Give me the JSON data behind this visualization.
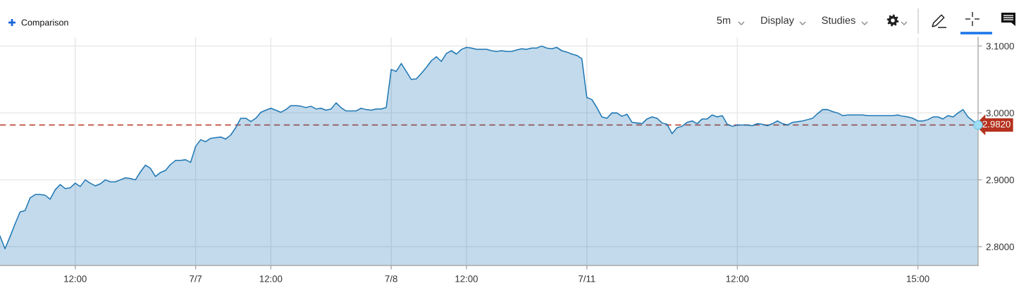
{
  "chart_data": {
    "type": "area",
    "categories": [
      null,
      null,
      null,
      null,
      null,
      null,
      null,
      null,
      null,
      null,
      null,
      null,
      null,
      null,
      null,
      "12:00",
      null,
      null,
      null,
      null,
      null,
      null,
      null,
      null,
      null,
      null,
      null,
      null,
      null,
      null,
      null,
      null,
      null,
      null,
      null,
      null,
      null,
      null,
      null,
      "7/7",
      null,
      null,
      null,
      null,
      null,
      null,
      null,
      null,
      null,
      null,
      null,
      null,
      null,
      null,
      "12:00",
      null,
      null,
      null,
      null,
      null,
      null,
      null,
      null,
      null,
      null,
      null,
      null,
      null,
      null,
      null,
      null,
      null,
      null,
      null,
      null,
      null,
      null,
      null,
      "7/8",
      null,
      null,
      null,
      null,
      null,
      null,
      null,
      null,
      null,
      null,
      null,
      null,
      null,
      null,
      "12:00",
      null,
      null,
      null,
      null,
      null,
      null,
      null,
      null,
      null,
      null,
      null,
      null,
      null,
      null,
      null,
      null,
      null,
      null,
      null,
      null,
      null,
      null,
      null,
      "7/11",
      null,
      null,
      null,
      null,
      null,
      null,
      null,
      null,
      null,
      null,
      null,
      null,
      null,
      null,
      null,
      null,
      null,
      null,
      null,
      null,
      null,
      null,
      null,
      null,
      null,
      null,
      null,
      null,
      null,
      "12:00",
      null,
      null,
      null,
      null,
      null,
      null,
      null,
      null,
      null,
      null,
      null,
      null,
      null,
      null,
      null,
      null,
      null,
      null,
      null,
      null,
      null,
      null,
      null,
      null,
      null,
      null,
      null,
      null,
      null,
      null,
      null,
      null,
      null,
      null,
      null,
      "15:00",
      null,
      null,
      null,
      null,
      null,
      null,
      null,
      null,
      null,
      null,
      null,
      null
    ],
    "series": [
      {
        "color": "#1f77b4",
        "values": [
          2.816,
          2.797,
          2.815,
          2.834,
          2.852,
          2.854,
          2.873,
          2.878,
          2.878,
          2.877,
          2.871,
          2.885,
          2.893,
          2.887,
          2.888,
          2.895,
          2.89,
          2.9,
          2.895,
          2.891,
          2.894,
          2.9,
          2.897,
          2.897,
          2.9,
          2.903,
          2.902,
          2.9,
          2.912,
          2.922,
          2.917,
          2.905,
          2.911,
          2.914,
          2.923,
          2.929,
          2.929,
          2.93,
          2.926,
          2.95,
          2.96,
          2.957,
          2.962,
          2.963,
          2.964,
          2.961,
          2.967,
          2.978,
          2.992,
          2.992,
          2.987,
          2.992,
          3.001,
          3.004,
          3.007,
          3.004,
          3.001,
          3.005,
          3.011,
          3.011,
          3.01,
          3.008,
          3.01,
          3.006,
          3.007,
          3.004,
          3.006,
          3.015,
          3.008,
          3.003,
          3.003,
          3.003,
          3.007,
          3.005,
          3.004,
          3.006,
          3.006,
          3.008,
          3.065,
          3.062,
          3.074,
          3.062,
          3.05,
          3.051,
          3.059,
          3.068,
          3.078,
          3.084,
          3.077,
          3.089,
          3.093,
          3.088,
          3.095,
          3.098,
          3.097,
          3.095,
          3.095,
          3.095,
          3.093,
          3.092,
          3.093,
          3.092,
          3.092,
          3.094,
          3.096,
          3.095,
          3.097,
          3.097,
          3.1,
          3.097,
          3.096,
          3.098,
          3.093,
          3.091,
          3.088,
          3.086,
          3.081,
          3.023,
          3.02,
          3.008,
          2.994,
          2.992,
          3.0,
          3.0,
          2.995,
          2.998,
          2.986,
          2.985,
          2.984,
          2.991,
          2.994,
          2.992,
          2.985,
          2.983,
          2.969,
          2.978,
          2.98,
          2.986,
          2.988,
          2.984,
          2.991,
          2.991,
          2.997,
          2.994,
          2.996,
          2.983,
          2.98,
          2.982,
          2.982,
          2.982,
          2.981,
          2.984,
          2.983,
          2.981,
          2.984,
          2.988,
          2.984,
          2.982,
          2.986,
          2.987,
          2.988,
          2.99,
          2.992,
          2.999,
          3.005,
          3.005,
          3.002,
          3.0,
          2.996,
          2.997,
          2.997,
          2.997,
          2.997,
          2.996,
          2.996,
          2.996,
          2.996,
          2.996,
          2.996,
          2.997,
          2.995,
          2.994,
          2.992,
          2.988,
          2.988,
          2.99,
          2.994,
          2.994,
          2.991,
          2.996,
          2.994,
          3.0,
          3.005,
          2.994,
          2.988,
          2.982
        ]
      },
      {
        "type": "scatter",
        "color": "#9fdcf5",
        "marker": "circle",
        "values": [
          null,
          null,
          null,
          null,
          null,
          null,
          null,
          null,
          null,
          null,
          null,
          null,
          null,
          null,
          null,
          null,
          null,
          null,
          null,
          null,
          null,
          null,
          null,
          null,
          null,
          null,
          null,
          null,
          null,
          null,
          null,
          null,
          null,
          null,
          null,
          null,
          null,
          null,
          null,
          null,
          null,
          null,
          null,
          null,
          null,
          null,
          null,
          null,
          null,
          null,
          null,
          null,
          null,
          null,
          null,
          null,
          null,
          null,
          null,
          null,
          null,
          null,
          null,
          null,
          null,
          null,
          null,
          null,
          null,
          null,
          null,
          null,
          null,
          null,
          null,
          null,
          null,
          null,
          null,
          null,
          null,
          null,
          null,
          null,
          null,
          null,
          null,
          null,
          null,
          null,
          null,
          null,
          null,
          null,
          null,
          null,
          null,
          null,
          null,
          null,
          null,
          null,
          null,
          null,
          null,
          null,
          null,
          null,
          null,
          null,
          null,
          null,
          null,
          null,
          null,
          null,
          null,
          null,
          null,
          null,
          null,
          null,
          null,
          null,
          null,
          null,
          null,
          null,
          null,
          null,
          null,
          null,
          null,
          null,
          null,
          null,
          null,
          null,
          null,
          null,
          null,
          null,
          null,
          null,
          null,
          null,
          null,
          null,
          null,
          null,
          null,
          null,
          null,
          null,
          null,
          null,
          null,
          null,
          null,
          null,
          null,
          null,
          null,
          null,
          null,
          null,
          null,
          null,
          null,
          null,
          null,
          null,
          null,
          null,
          null,
          null,
          null,
          null,
          null,
          null,
          null,
          null,
          null,
          null,
          null,
          null,
          null,
          null,
          null,
          null,
          null,
          null,
          null,
          null,
          null,
          2.982
        ]
      }
    ],
    "ylim": [
      2.772,
      3.113
    ],
    "yticks": [
      {
        "value": 2.8,
        "label": "2.8000"
      },
      {
        "value": 2.9,
        "label": "2.9000"
      },
      {
        "value": 3.0,
        "label": "3.0000"
      },
      {
        "value": 3.1,
        "label": "3.1000"
      }
    ],
    "grid": true,
    "ref_lines": [
      {
        "axis": "y",
        "value": 2.982,
        "label": "2.9820",
        "color": "#b5321e",
        "line_style": "dashed"
      }
    ],
    "annotations": [
      "Comparison",
      "5m",
      "Display",
      "Studies"
    ]
  }
}
